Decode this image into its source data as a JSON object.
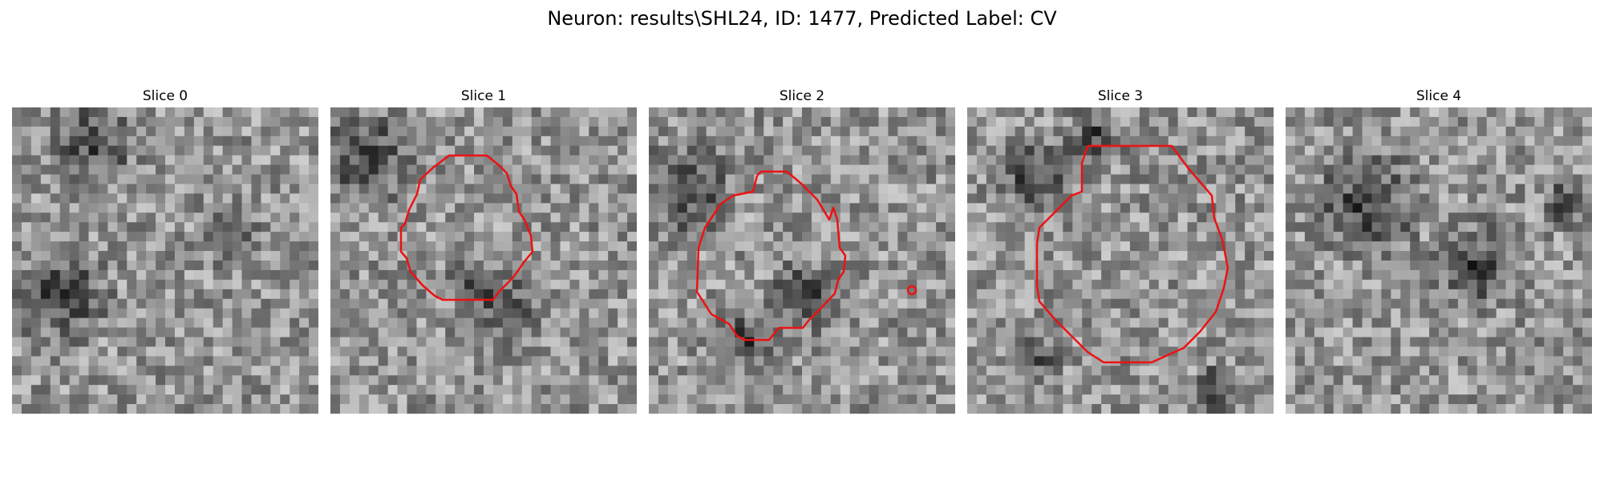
{
  "figure": {
    "title": "Neuron: results\\SHL24, ID: 1477, Predicted Label: CV"
  },
  "contour_color": "#ee1111",
  "panels": [
    {
      "title": "Slice 0",
      "has_contour": false
    },
    {
      "title": "Slice 1",
      "has_contour": true
    },
    {
      "title": "Slice 2",
      "has_contour": true
    },
    {
      "title": "Slice 3",
      "has_contour": true
    },
    {
      "title": "Slice 4",
      "has_contour": false
    }
  ]
}
